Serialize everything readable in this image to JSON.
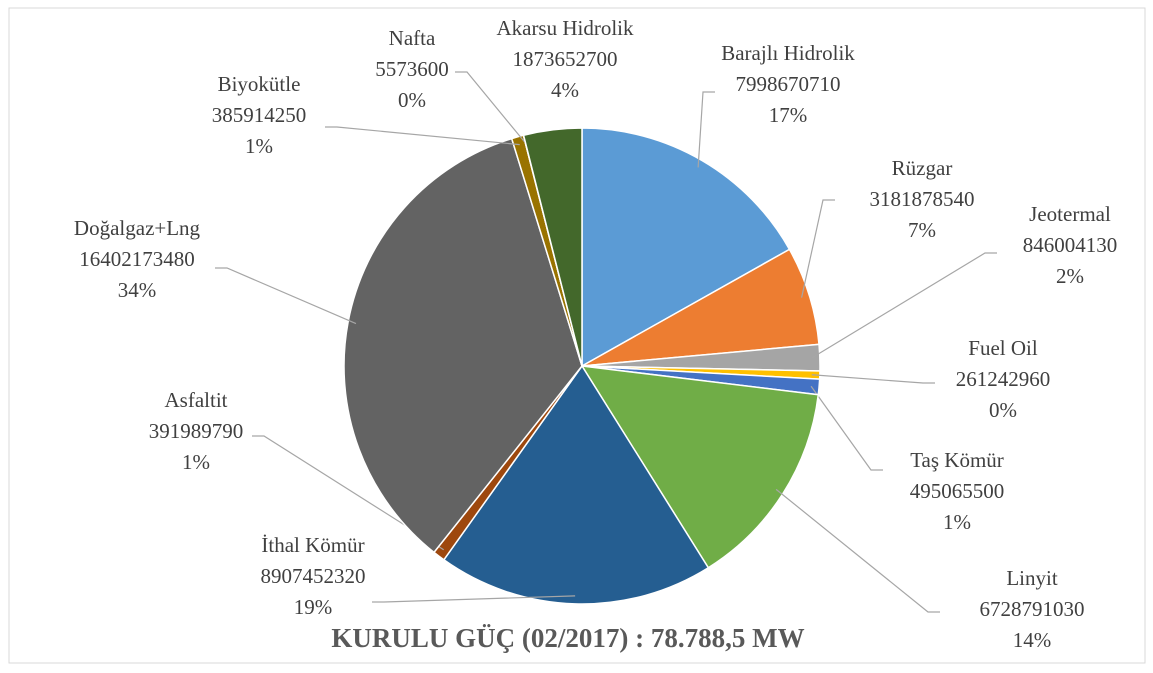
{
  "chart_data": {
    "type": "pie",
    "title": "KURULU GÜÇ (02/2017) : 78.788,5 MW",
    "categories": [
      "Barajlı Hidrolik",
      "Rüzgar",
      "Jeotermal",
      "Fuel Oil",
      "Taş Kömür",
      "Linyit",
      "İthal Kömür",
      "Asfaltit",
      "Doğalgaz+Lng",
      "Biyokütle",
      "Nafta",
      "Akarsu Hidrolik"
    ],
    "values": [
      7998670710,
      3181878540,
      846004130,
      261242960,
      495065500,
      6728791030,
      8907452320,
      391989790,
      16402173480,
      385914250,
      5573600,
      1873652700
    ],
    "percent_labels": [
      "17%",
      "7%",
      "2%",
      "0%",
      "1%",
      "14%",
      "19%",
      "1%",
      "34%",
      "1%",
      "0%",
      "4%"
    ],
    "colors": [
      "#5b9bd5",
      "#ed7d31",
      "#a5a5a5",
      "#ffc000",
      "#4472c4",
      "#70ad47",
      "#255e91",
      "#9e480e",
      "#636363",
      "#997300",
      "#264478",
      "#43682b"
    ]
  }
}
